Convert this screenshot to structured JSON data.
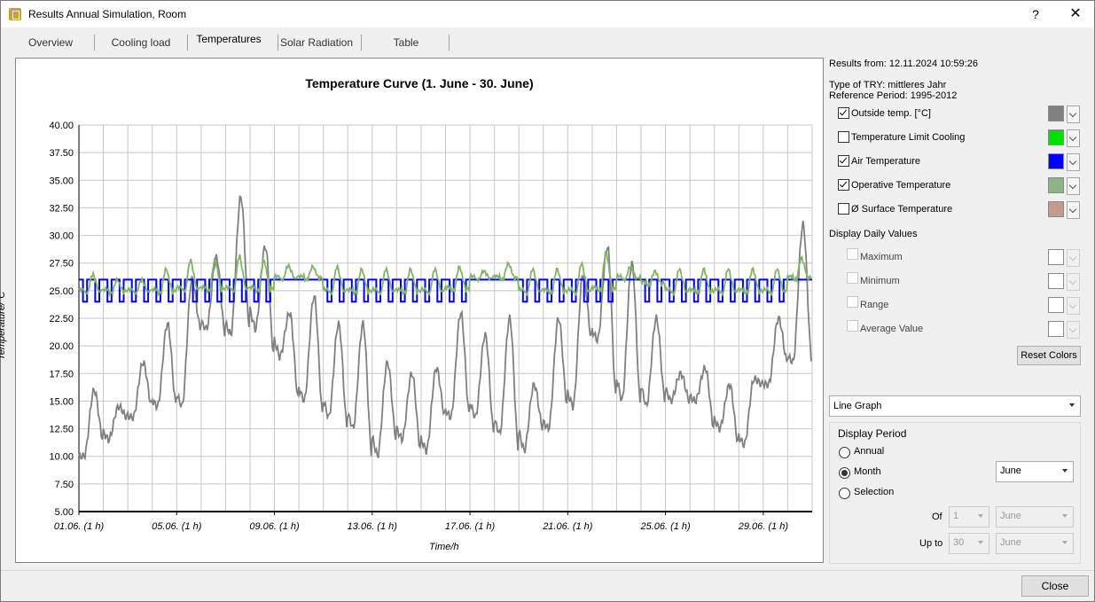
{
  "window": {
    "title": "Results Annual Simulation, Room"
  },
  "tabs": [
    "Overview",
    "Cooling load",
    "Temperatures",
    "Solar Radiation",
    "Table"
  ],
  "chart_data": {
    "type": "line",
    "title": "Temperature Curve (1. June - 30. June)",
    "xlabel": "Time/h",
    "ylabel": "Temperature/°C",
    "ylim": [
      5,
      40
    ],
    "xlim": [
      0,
      720
    ],
    "y_ticks": [
      "40.00",
      "37.50",
      "35.00",
      "32.50",
      "30.00",
      "27.50",
      "25.00",
      "22.50",
      "20.00",
      "17.50",
      "15.00",
      "12.50",
      "10.00",
      "7.50",
      "5.00"
    ],
    "x_tick_labels": [
      "01.06. (1 h)",
      "05.06. (1 h)",
      "09.06. (1 h)",
      "13.06. (1 h)",
      "17.06. (1 h)",
      "21.06. (1 h)",
      "25.06. (1 h)",
      "29.06. (1 h)"
    ],
    "x_tick_hours": [
      0,
      96,
      192,
      288,
      384,
      480,
      576,
      672
    ],
    "grid": true,
    "series": [
      {
        "name": "Outside temp. [°C]",
        "color": "#808080",
        "daily_min": [
          10.0,
          11.5,
          13.5,
          14.5,
          14.5,
          21.5,
          21.0,
          21.5,
          19.0,
          15.0,
          13.5,
          12.5,
          10.0,
          11.5,
          10.5,
          13.5,
          13.5,
          12.0,
          10.5,
          12.5,
          14.5,
          20.5,
          15.0,
          14.5,
          15.0,
          15.0,
          12.5,
          11.0,
          16.5,
          18.5
        ],
        "daily_max": [
          16.0,
          14.5,
          18.5,
          22.0,
          26.0,
          28.0,
          33.5,
          29.0,
          23.0,
          24.5,
          22.0,
          22.0,
          18.5,
          17.5,
          18.0,
          23.0,
          21.0,
          22.5,
          16.5,
          22.5,
          26.5,
          29.0,
          27.5,
          22.5,
          17.5,
          18.0,
          16.5,
          17.0,
          22.5,
          31.0
        ]
      },
      {
        "name": "Air Temperature",
        "color": "#0000ff",
        "daily_min": [
          24,
          24,
          24,
          24,
          24,
          24,
          24,
          24,
          26,
          26,
          24,
          24,
          24,
          24,
          24,
          24,
          26,
          26,
          24,
          24,
          24,
          24,
          26,
          24,
          24,
          24,
          24,
          24,
          24,
          26
        ],
        "daily_max": [
          26,
          26,
          26,
          26,
          26,
          26,
          26,
          26,
          26,
          26,
          26,
          26,
          26,
          26,
          26,
          26,
          26,
          26,
          26,
          26,
          26,
          26,
          26,
          26,
          26,
          26,
          26,
          26,
          26,
          26
        ]
      },
      {
        "name": "Operative Temperature",
        "color": "#82b366",
        "daily_min": [
          24.8,
          24.8,
          24.8,
          24.8,
          25.0,
          25.0,
          25.0,
          25.0,
          26.0,
          26.0,
          24.8,
          24.8,
          24.8,
          24.8,
          24.8,
          25.0,
          26.0,
          26.0,
          24.8,
          24.8,
          24.8,
          25.0,
          26.0,
          25.5,
          24.8,
          24.8,
          24.8,
          24.8,
          24.8,
          26.0
        ],
        "daily_max": [
          26.5,
          26.0,
          26.0,
          27.0,
          27.8,
          27.8,
          28.2,
          27.8,
          27.3,
          27.2,
          27.2,
          27.0,
          27.0,
          27.0,
          27.0,
          27.2,
          26.8,
          27.5,
          27.0,
          27.0,
          27.5,
          28.5,
          27.2,
          26.8,
          27.0,
          27.0,
          27.0,
          27.0,
          27.0,
          28.0
        ]
      }
    ]
  },
  "panel": {
    "results_from": "Results from: 12.11.2024 10:59:26",
    "try_type": "Type of TRY: mittleres Jahr",
    "reference_period": "Reference Period: 1995-2012",
    "series_options": [
      {
        "label": "Outside temp. [°C]",
        "checked": true,
        "color": "#808080"
      },
      {
        "label": "Temperature Limit Cooling",
        "checked": false,
        "color": "#00e000"
      },
      {
        "label": "Air Temperature",
        "checked": true,
        "color": "#0000ff"
      },
      {
        "label": "Operative Temperature",
        "checked": true,
        "color": "#8db584"
      },
      {
        "label": "Ø Surface Temperature",
        "checked": false,
        "color": "#c49a8e"
      }
    ],
    "daily_values_heading": "Display Daily Values",
    "daily_values": [
      {
        "label": "Maximum",
        "color": "#ffffff"
      },
      {
        "label": "Minimum",
        "color": "#ffffff"
      },
      {
        "label": "Range",
        "color": "#ffffff"
      },
      {
        "label": "Average Value",
        "color": "#ffffff"
      }
    ],
    "reset_colors": "Reset Colors",
    "graph_type": "Line Graph",
    "display_period": {
      "heading": "Display Period",
      "annual": "Annual",
      "month": "Month",
      "selection": "Selection",
      "month_value": "June",
      "of_label": "Of",
      "of_day": "1",
      "of_month": "June",
      "upto_label": "Up to",
      "upto_day": "30",
      "upto_month": "June"
    }
  },
  "footer": {
    "close": "Close"
  }
}
